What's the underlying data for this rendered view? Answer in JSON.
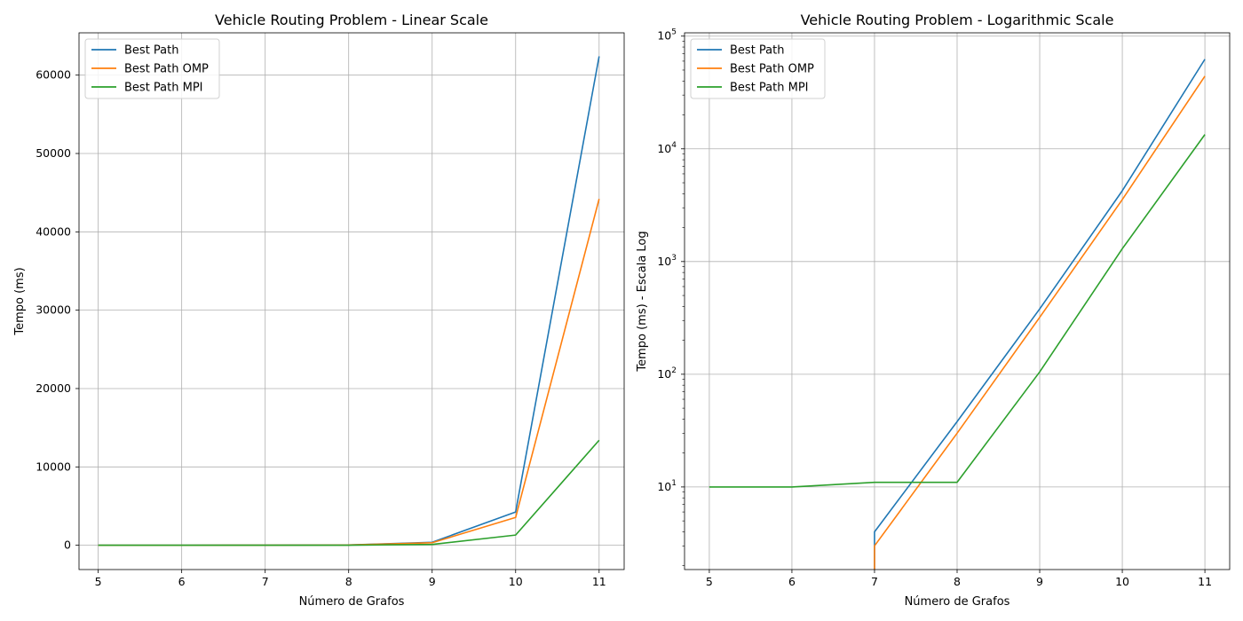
{
  "chart_data": [
    {
      "type": "line",
      "title": "Vehicle Routing Problem - Linear Scale",
      "xlabel": "Número de Grafos",
      "ylabel": "Tempo (ms)",
      "x": [
        5,
        6,
        7,
        8,
        9,
        10,
        11
      ],
      "xlim": [
        4.77,
        11.3
      ],
      "ylim": [
        -3100,
        65400
      ],
      "yscale": "linear",
      "xticks": [
        5,
        6,
        7,
        8,
        9,
        10,
        11
      ],
      "yticks": [
        0,
        10000,
        20000,
        30000,
        40000,
        50000,
        60000
      ],
      "ytick_labels": [
        "0",
        "10000",
        "20000",
        "30000",
        "40000",
        "50000",
        "60000"
      ],
      "grid": true,
      "legend_position": "top-left",
      "series": [
        {
          "name": "Best Path",
          "color": "#1f77b4",
          "values": [
            0,
            0,
            4,
            38,
            380,
            4250,
            62400
          ]
        },
        {
          "name": "Best Path OMP",
          "color": "#ff7f0e",
          "values": [
            0,
            0,
            3,
            30,
            320,
            3550,
            44200
          ]
        },
        {
          "name": "Best Path MPI",
          "color": "#2ca02c",
          "values": [
            10,
            10,
            11,
            11,
            105,
            1300,
            13400
          ]
        }
      ]
    },
    {
      "type": "line",
      "title": "Vehicle Routing Problem - Logarithmic Scale",
      "xlabel": "Número de Grafos",
      "ylabel": "Tempo (ms) - Escala Log",
      "x": [
        5,
        6,
        7,
        8,
        9,
        10,
        11
      ],
      "xlim": [
        4.7,
        11.3
      ],
      "ylim": [
        1.85,
        107000
      ],
      "yscale": "log",
      "xticks": [
        5,
        6,
        7,
        8,
        9,
        10,
        11
      ],
      "yticks": [
        10,
        100,
        1000,
        10000,
        100000
      ],
      "ytick_base": "10",
      "ytick_exponents": [
        "1",
        "2",
        "3",
        "4",
        "5"
      ],
      "grid": true,
      "legend_position": "top-left",
      "series": [
        {
          "name": "Best Path",
          "color": "#1f77b4",
          "values": [
            0,
            0,
            4,
            38,
            380,
            4250,
            62400
          ]
        },
        {
          "name": "Best Path OMP",
          "color": "#ff7f0e",
          "values": [
            0,
            0,
            3,
            30,
            320,
            3550,
            44200
          ]
        },
        {
          "name": "Best Path MPI",
          "color": "#2ca02c",
          "values": [
            10,
            10,
            11,
            11,
            105,
            1300,
            13400
          ]
        }
      ]
    }
  ]
}
